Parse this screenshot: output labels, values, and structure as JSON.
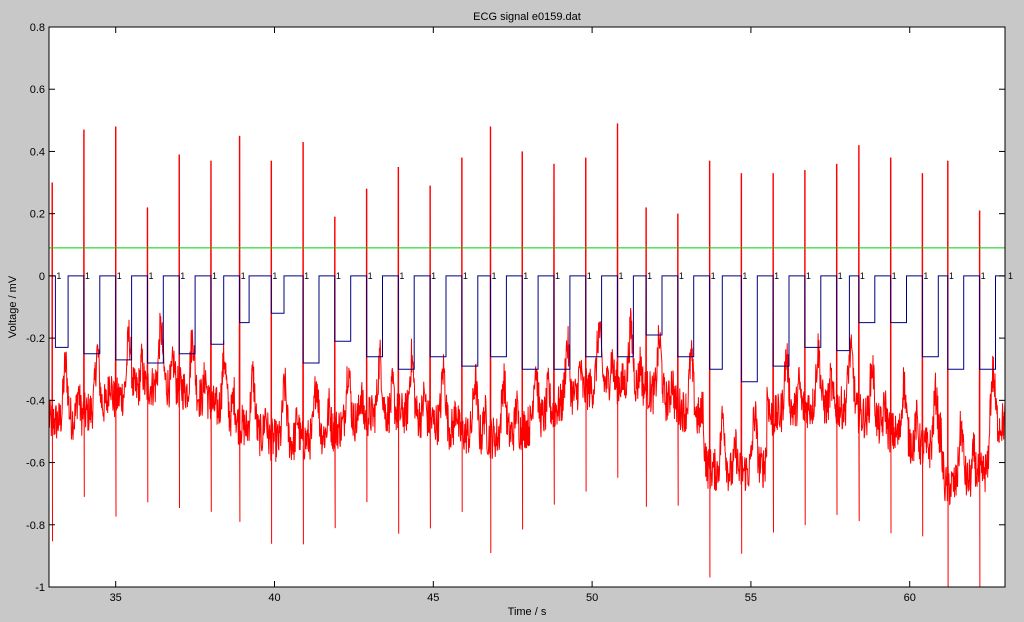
{
  "chart_data": {
    "type": "line",
    "title": "ECG signal e0159.dat",
    "xlabel": "Time / s",
    "ylabel": "Voltage / mV",
    "xlim": [
      32.9,
      63.0
    ],
    "ylim": [
      -1.0,
      0.8
    ],
    "xticks": [
      35,
      40,
      45,
      50,
      55,
      60
    ],
    "yticks": [
      -1,
      -0.8,
      -0.6,
      -0.4,
      -0.2,
      0,
      0.2,
      0.4,
      0.6,
      0.8
    ],
    "grid": false,
    "beat_marker_label": "1",
    "series": [
      {
        "role": "ecg-signal",
        "color": "#ff0000",
        "baseline_approx": -0.45,
        "r_peaks": [
          {
            "t": 33.0,
            "v": 0.3
          },
          {
            "t": 34.0,
            "v": 0.47
          },
          {
            "t": 35.0,
            "v": 0.48
          },
          {
            "t": 36.0,
            "v": 0.22
          },
          {
            "t": 37.0,
            "v": 0.39
          },
          {
            "t": 38.0,
            "v": 0.37
          },
          {
            "t": 38.9,
            "v": 0.45
          },
          {
            "t": 39.9,
            "v": 0.37
          },
          {
            "t": 40.9,
            "v": 0.43
          },
          {
            "t": 41.9,
            "v": 0.19
          },
          {
            "t": 42.9,
            "v": 0.28
          },
          {
            "t": 43.9,
            "v": 0.35
          },
          {
            "t": 44.9,
            "v": 0.29
          },
          {
            "t": 45.9,
            "v": 0.38
          },
          {
            "t": 46.8,
            "v": 0.48
          },
          {
            "t": 47.8,
            "v": 0.4
          },
          {
            "t": 48.8,
            "v": 0.36
          },
          {
            "t": 49.8,
            "v": 0.38
          },
          {
            "t": 50.8,
            "v": 0.49
          },
          {
            "t": 51.7,
            "v": 0.22
          },
          {
            "t": 52.7,
            "v": 0.2
          },
          {
            "t": 53.7,
            "v": 0.37
          },
          {
            "t": 54.7,
            "v": 0.33
          },
          {
            "t": 55.7,
            "v": 0.33
          },
          {
            "t": 56.7,
            "v": 0.34
          },
          {
            "t": 57.7,
            "v": 0.36
          },
          {
            "t": 58.4,
            "v": 0.42
          },
          {
            "t": 59.4,
            "v": 0.38
          },
          {
            "t": 60.4,
            "v": 0.33
          },
          {
            "t": 61.2,
            "v": 0.37
          },
          {
            "t": 62.2,
            "v": 0.21
          }
        ]
      },
      {
        "role": "threshold",
        "color": "#00cc00",
        "value": 0.09
      },
      {
        "role": "beat-detection",
        "color": "#00007f",
        "high": 0.0,
        "beats": [
          {
            "start": 33.1,
            "end": 33.5,
            "low": -0.23
          },
          {
            "start": 34.0,
            "end": 34.5,
            "low": -0.25
          },
          {
            "start": 35.0,
            "end": 35.5,
            "low": -0.27
          },
          {
            "start": 36.0,
            "end": 36.5,
            "low": -0.28
          },
          {
            "start": 37.0,
            "end": 37.5,
            "low": -0.25
          },
          {
            "start": 38.0,
            "end": 38.4,
            "low": -0.22
          },
          {
            "start": 38.9,
            "end": 39.2,
            "low": -0.15
          },
          {
            "start": 39.9,
            "end": 40.3,
            "low": -0.12
          },
          {
            "start": 40.9,
            "end": 41.4,
            "low": -0.28
          },
          {
            "start": 41.9,
            "end": 42.4,
            "low": -0.21
          },
          {
            "start": 42.9,
            "end": 43.4,
            "low": -0.26
          },
          {
            "start": 43.9,
            "end": 44.4,
            "low": -0.3
          },
          {
            "start": 44.9,
            "end": 45.4,
            "low": -0.26
          },
          {
            "start": 45.9,
            "end": 46.4,
            "low": -0.29
          },
          {
            "start": 46.8,
            "end": 47.3,
            "low": -0.26
          },
          {
            "start": 47.8,
            "end": 48.3,
            "low": -0.3
          },
          {
            "start": 48.8,
            "end": 49.3,
            "low": -0.3
          },
          {
            "start": 49.8,
            "end": 50.3,
            "low": -0.26
          },
          {
            "start": 50.8,
            "end": 51.3,
            "low": -0.26
          },
          {
            "start": 51.7,
            "end": 52.2,
            "low": -0.19
          },
          {
            "start": 52.7,
            "end": 53.2,
            "low": -0.26
          },
          {
            "start": 53.7,
            "end": 54.1,
            "low": -0.3
          },
          {
            "start": 54.7,
            "end": 55.2,
            "low": -0.34
          },
          {
            "start": 55.7,
            "end": 56.2,
            "low": -0.29
          },
          {
            "start": 56.7,
            "end": 57.2,
            "low": -0.23
          },
          {
            "start": 57.7,
            "end": 58.1,
            "low": -0.24
          },
          {
            "start": 58.4,
            "end": 58.9,
            "low": -0.15
          },
          {
            "start": 59.4,
            "end": 59.9,
            "low": -0.15
          },
          {
            "start": 60.4,
            "end": 60.9,
            "low": -0.26
          },
          {
            "start": 61.2,
            "end": 61.7,
            "low": -0.3
          },
          {
            "start": 62.2,
            "end": 62.7,
            "low": -0.3
          }
        ]
      }
    ]
  }
}
